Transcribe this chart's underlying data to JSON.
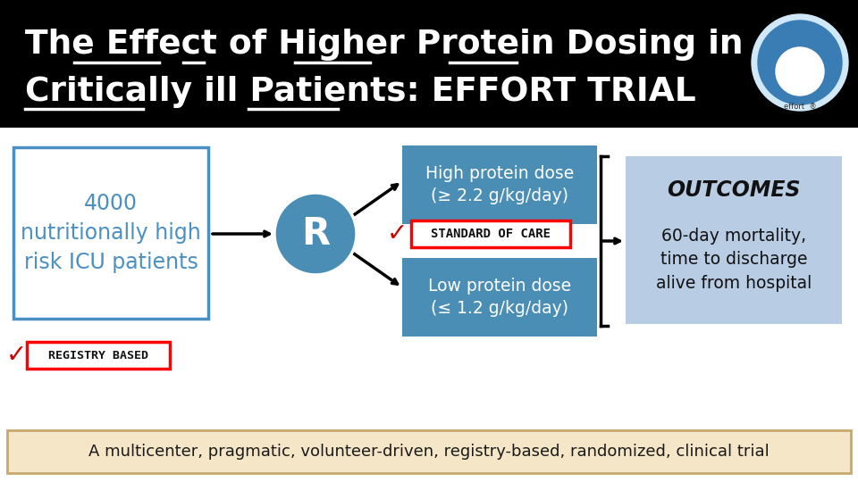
{
  "bg_color": "#ffffff",
  "title_bg": "#000000",
  "title_line1": "The Effect of Higher Protein Dosing in",
  "title_line2": "Critically ill Patients: EFFORT TRIAL",
  "title_color": "#ffffff",
  "title_fontsize": 28,
  "left_box_text": "4000\nnutritionally high\nrisk ICU patients",
  "left_box_color": "#4a90c4",
  "left_box_facecolor": "#ffffff",
  "r_circle_color": "#4a8db5",
  "r_text": "R",
  "high_box_text": "High protein dose\n(≥ 2.2 g/kg/day)",
  "high_box_color": "#4a8db5",
  "soc_box_text": "STANDARD OF CARE",
  "soc_box_color": "#ff0000",
  "soc_box_facecolor": "#ffffff",
  "low_box_text": "Low protein dose\n(≤ 1.2 g/kg/day)",
  "low_box_color": "#4a8db5",
  "outcomes_title": "OUTCOMES",
  "outcomes_body": "60-day mortality,\ntime to discharge\nalive from hospital",
  "outcomes_box_color": "#b8cce4",
  "registry_text": "REGISTRY BASED",
  "registry_box_color": "#ff0000",
  "bottom_bar_text": "A multicenter, pragmatic, volunteer-driven, registry-based, randomized, clinical trial",
  "bottom_bar_color": "#f5e6c8",
  "bottom_bar_border": "#c8a96e"
}
